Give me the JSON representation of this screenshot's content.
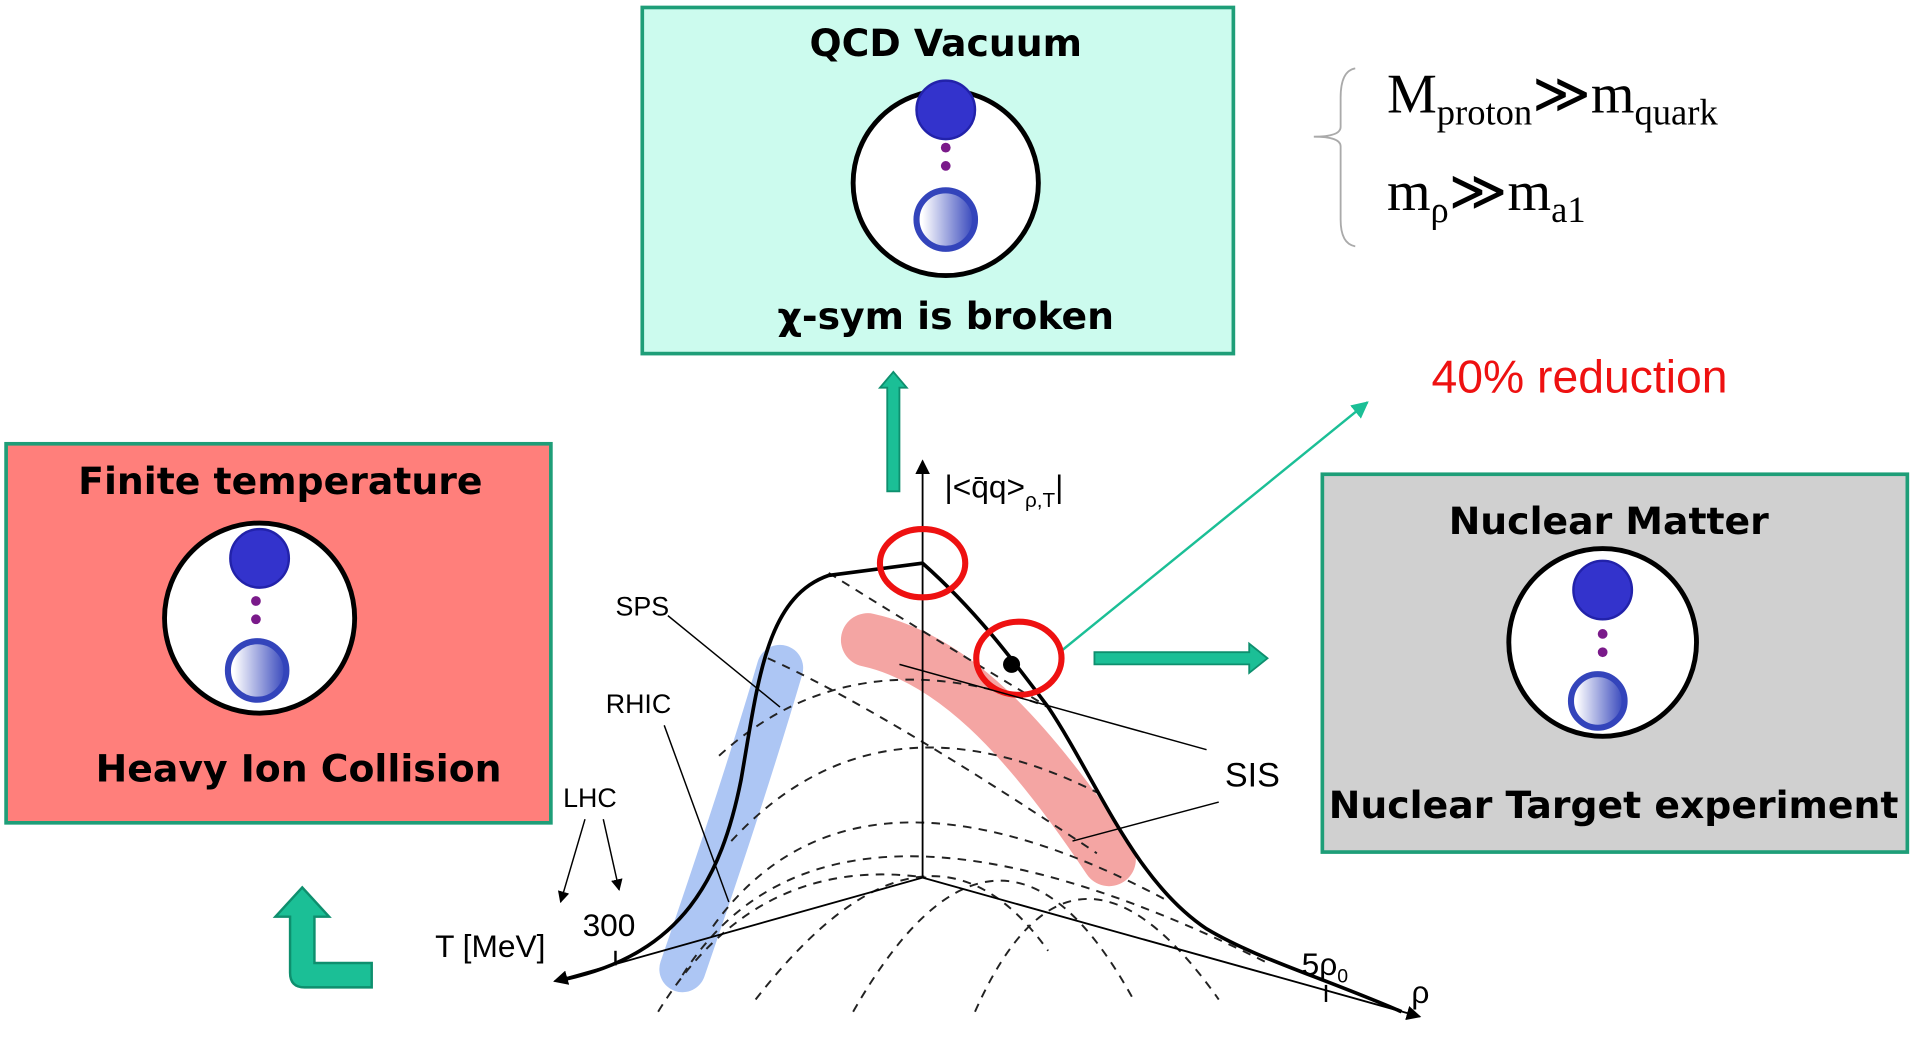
{
  "vacuum_box": {
    "title": "QCD Vacuum",
    "caption": "χ-sym is broken"
  },
  "temperature_box": {
    "title": "Finite temperature",
    "caption": "Heavy Ion Collision"
  },
  "nuclear_box": {
    "title": "Nuclear Matter",
    "caption": "Nuclear Target experiment"
  },
  "relations": [
    {
      "left": "M",
      "left_sub": "proton",
      "op": "≫",
      "right": "m",
      "right_sub": "quark"
    },
    {
      "left": "m",
      "left_sub": "ρ",
      "op": "≫",
      "right": "m",
      "right_sub": "a1"
    }
  ],
  "annotation": "40% reduction",
  "graph": {
    "z_axis": {
      "text": "|<q̄q>",
      "sub": "ρ,T",
      "close": "|"
    },
    "t_axis": "T [MeV]",
    "t_tick": "300",
    "rho_axis": "ρ",
    "rho_tick": {
      "text": "5ρ",
      "sub": "0"
    },
    "labels": {
      "sps": "SPS",
      "rhic": "RHIC",
      "lhc": "LHC",
      "sis": "SIS"
    }
  }
}
